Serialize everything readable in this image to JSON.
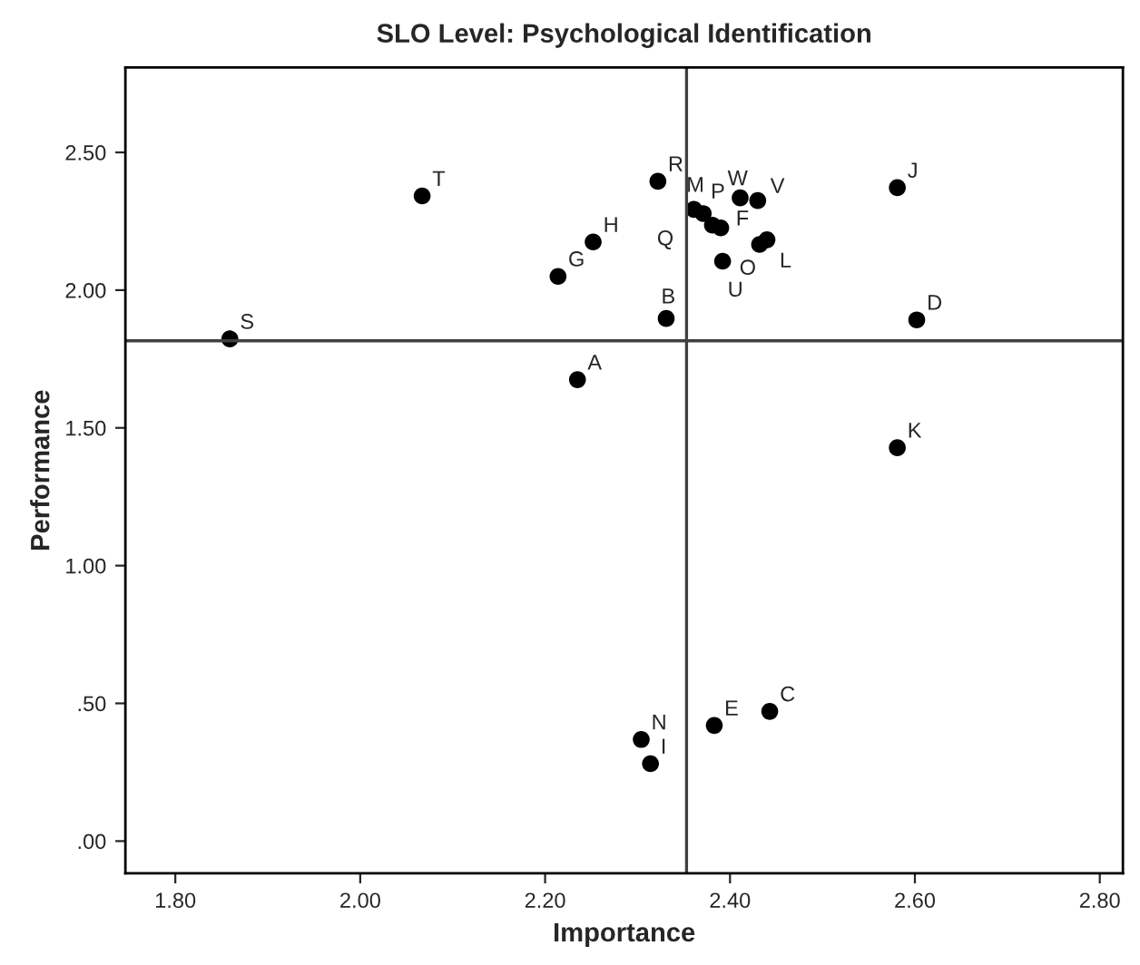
{
  "chart_data": {
    "type": "scatter",
    "title": "SLO Level: Psychological Identification",
    "xlabel": "Importance",
    "ylabel": "Performance",
    "x": [
      2.235,
      2.331,
      2.443,
      2.602,
      2.383,
      2.39,
      2.214,
      2.252,
      2.314,
      2.581,
      2.581,
      2.44,
      2.361,
      2.304,
      2.432,
      2.371,
      2.381,
      2.322,
      1.859,
      2.067,
      2.392,
      2.43,
      2.411
    ],
    "series": [
      {
        "color": "#000000",
        "values": [
          1.675,
          1.897,
          0.471,
          1.892,
          0.42,
          2.226,
          2.05,
          2.175,
          0.281,
          2.372,
          1.428,
          2.183,
          2.293,
          0.369,
          2.166,
          2.278,
          2.236,
          2.395,
          1.823,
          2.342,
          2.105,
          2.325,
          2.335
        ]
      }
    ],
    "annotations": [
      {
        "text": "A",
        "x": 2.235,
        "y": 1.675
      },
      {
        "text": "B",
        "x": 2.331,
        "y": 1.897
      },
      {
        "text": "C",
        "x": 2.443,
        "y": 0.471
      },
      {
        "text": "D",
        "x": 2.602,
        "y": 1.892
      },
      {
        "text": "E",
        "x": 2.383,
        "y": 0.42
      },
      {
        "text": "F",
        "x": 2.39,
        "y": 2.226
      },
      {
        "text": "G",
        "x": 2.214,
        "y": 2.05
      },
      {
        "text": "H",
        "x": 2.252,
        "y": 2.175
      },
      {
        "text": "I",
        "x": 2.314,
        "y": 0.281
      },
      {
        "text": "J",
        "x": 2.581,
        "y": 2.372
      },
      {
        "text": "K",
        "x": 2.581,
        "y": 1.428
      },
      {
        "text": "L",
        "x": 2.44,
        "y": 2.183
      },
      {
        "text": "M",
        "x": 2.361,
        "y": 2.293
      },
      {
        "text": "N",
        "x": 2.304,
        "y": 0.369
      },
      {
        "text": "O",
        "x": 2.432,
        "y": 2.166
      },
      {
        "text": "P",
        "x": 2.371,
        "y": 2.278
      },
      {
        "text": "Q",
        "x": 2.381,
        "y": 2.236
      },
      {
        "text": "R",
        "x": 2.322,
        "y": 2.395
      },
      {
        "text": "S",
        "x": 1.859,
        "y": 1.823
      },
      {
        "text": "T",
        "x": 2.067,
        "y": 2.342
      },
      {
        "text": "U",
        "x": 2.392,
        "y": 2.105
      },
      {
        "text": "V",
        "x": 2.43,
        "y": 2.325
      },
      {
        "text": "W",
        "x": 2.411,
        "y": 2.335
      }
    ],
    "ref_lines": [
      {
        "axis": "x",
        "value": 2.353,
        "color": "#404040"
      },
      {
        "axis": "y",
        "value": 1.816,
        "color": "#404040"
      }
    ],
    "xlim": [
      1.746,
      2.825
    ],
    "ylim": [
      -0.117,
      2.808
    ],
    "xticks": [
      {
        "value": 1.8,
        "label": "1.80"
      },
      {
        "value": 2.0,
        "label": "2.00"
      },
      {
        "value": 2.2,
        "label": "2.20"
      },
      {
        "value": 2.4,
        "label": "2.40"
      },
      {
        "value": 2.6,
        "label": "2.60"
      },
      {
        "value": 2.8,
        "label": "2.80"
      }
    ],
    "yticks": [
      {
        "value": 0,
        "label": ".00"
      },
      {
        "value": 0.5,
        "label": ".50"
      },
      {
        "value": 1.0,
        "label": "1.00"
      },
      {
        "value": 1.5,
        "label": "1.50"
      },
      {
        "value": 2.0,
        "label": "2.00"
      },
      {
        "value": 2.5,
        "label": "2.50"
      }
    ],
    "marker": "circle",
    "grid": false,
    "legend": false
  }
}
